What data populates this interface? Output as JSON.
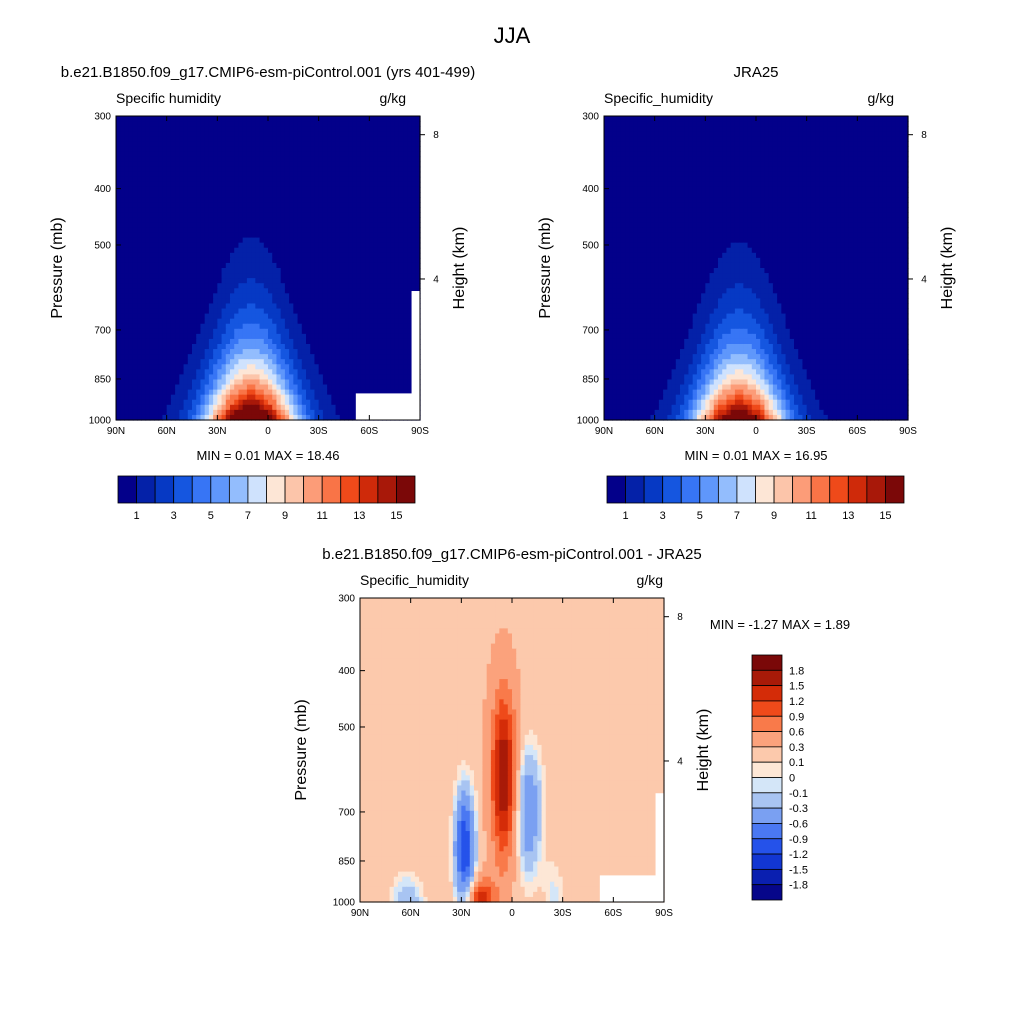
{
  "page_title": "JJA",
  "colors": {
    "model_obs_scale": [
      "#03008a",
      "#0421a8",
      "#0639c4",
      "#1556e0",
      "#3775f5",
      "#5f97fb",
      "#93bdfd",
      "#cfe2fd",
      "#fde6d6",
      "#fcc5aa",
      "#fc9c78",
      "#f97447",
      "#ef4a1a",
      "#cf2a0a",
      "#a81809",
      "#7b0808"
    ],
    "diff_scale": [
      "#06068a",
      "#0a1fb0",
      "#1236d2",
      "#2552ea",
      "#4a78f2",
      "#7aa0f2",
      "#a8c4f2",
      "#d4e6f8",
      "#fde7d6",
      "#fcc9ac",
      "#fba27c",
      "#f97a4a",
      "#ef4a1a",
      "#d42c08",
      "#a81a08",
      "#7a0808"
    ]
  },
  "chart_data": [
    {
      "type": "heatmap",
      "panel_title": "b.e21.B1850.f09_g17.CMIP6-esm-piControl.001 (yrs 401-499)",
      "left_label": "Specific humidity",
      "right_label": "g/kg",
      "ylabel": "Pressure (mb)",
      "ylabel_right": "Height (km)",
      "x_ticks": [
        "90N",
        "60N",
        "30N",
        "0",
        "30S",
        "60S",
        "90S"
      ],
      "x_values": [
        90,
        60,
        30,
        0,
        -30,
        -60,
        -90
      ],
      "y_ticks": [
        "300",
        "400",
        "500",
        "700",
        "850",
        "1000"
      ],
      "y_values": [
        300,
        400,
        500,
        700,
        850,
        1000
      ],
      "y_right_ticks": [
        "8",
        "4"
      ],
      "y_right_values": [
        8,
        4
      ],
      "ylim": [
        1000,
        300
      ],
      "xlim": [
        90,
        -90
      ],
      "min_max_text": "MIN =   0.01  MAX =  18.46",
      "min": 0.01,
      "max": 18.46,
      "colorbar_ticks": [
        "1",
        "3",
        "5",
        "7",
        "9",
        "11",
        "13",
        "15"
      ],
      "colorbar_values": [
        1,
        3,
        5,
        7,
        9,
        11,
        13,
        15
      ],
      "peak_lat": 10,
      "peak_value": 18.46
    },
    {
      "type": "heatmap",
      "panel_title": "JRA25",
      "left_label": "Specific_humidity",
      "right_label": "g/kg",
      "ylabel": "Pressure (mb)",
      "ylabel_right": "Height (km)",
      "x_ticks": [
        "90N",
        "60N",
        "30N",
        "0",
        "30S",
        "60S",
        "90S"
      ],
      "x_values": [
        90,
        60,
        30,
        0,
        -30,
        -60,
        -90
      ],
      "y_ticks": [
        "300",
        "400",
        "500",
        "700",
        "850",
        "1000"
      ],
      "y_values": [
        300,
        400,
        500,
        700,
        850,
        1000
      ],
      "y_right_ticks": [
        "8",
        "4"
      ],
      "y_right_values": [
        8,
        4
      ],
      "ylim": [
        1000,
        300
      ],
      "xlim": [
        90,
        -90
      ],
      "min_max_text": "MIN =   0.01  MAX =  16.95",
      "min": 0.01,
      "max": 16.95,
      "colorbar_ticks": [
        "1",
        "3",
        "5",
        "7",
        "9",
        "11",
        "13",
        "15"
      ],
      "colorbar_values": [
        1,
        3,
        5,
        7,
        9,
        11,
        13,
        15
      ],
      "peak_lat": 10,
      "peak_value": 16.95
    },
    {
      "type": "heatmap",
      "panel_title": "b.e21.B1850.f09_g17.CMIP6-esm-piControl.001 - JRA25",
      "left_label": "Specific_humidity",
      "right_label": "g/kg",
      "ylabel": "Pressure (mb)",
      "ylabel_right": "Height (km)",
      "x_ticks": [
        "90N",
        "60N",
        "30N",
        "0",
        "30S",
        "60S",
        "90S"
      ],
      "x_values": [
        90,
        60,
        30,
        0,
        -30,
        -60,
        -90
      ],
      "y_ticks": [
        "300",
        "400",
        "500",
        "700",
        "850",
        "1000"
      ],
      "y_values": [
        300,
        400,
        500,
        700,
        850,
        1000
      ],
      "y_right_ticks": [
        "8",
        "4"
      ],
      "y_right_values": [
        8,
        4
      ],
      "ylim": [
        1000,
        300
      ],
      "xlim": [
        90,
        -90
      ],
      "min_max_text": "MIN =  -1.27  MAX =   1.89",
      "min": -1.27,
      "max": 1.89,
      "colorbar_labels": [
        "1.8",
        "1.5",
        "1.2",
        "0.9",
        "0.6",
        "0.3",
        "0.1",
        "0",
        "-0.1",
        "-0.3",
        "-0.6",
        "-0.9",
        "-1.2",
        "-1.5",
        "-1.8"
      ]
    }
  ]
}
